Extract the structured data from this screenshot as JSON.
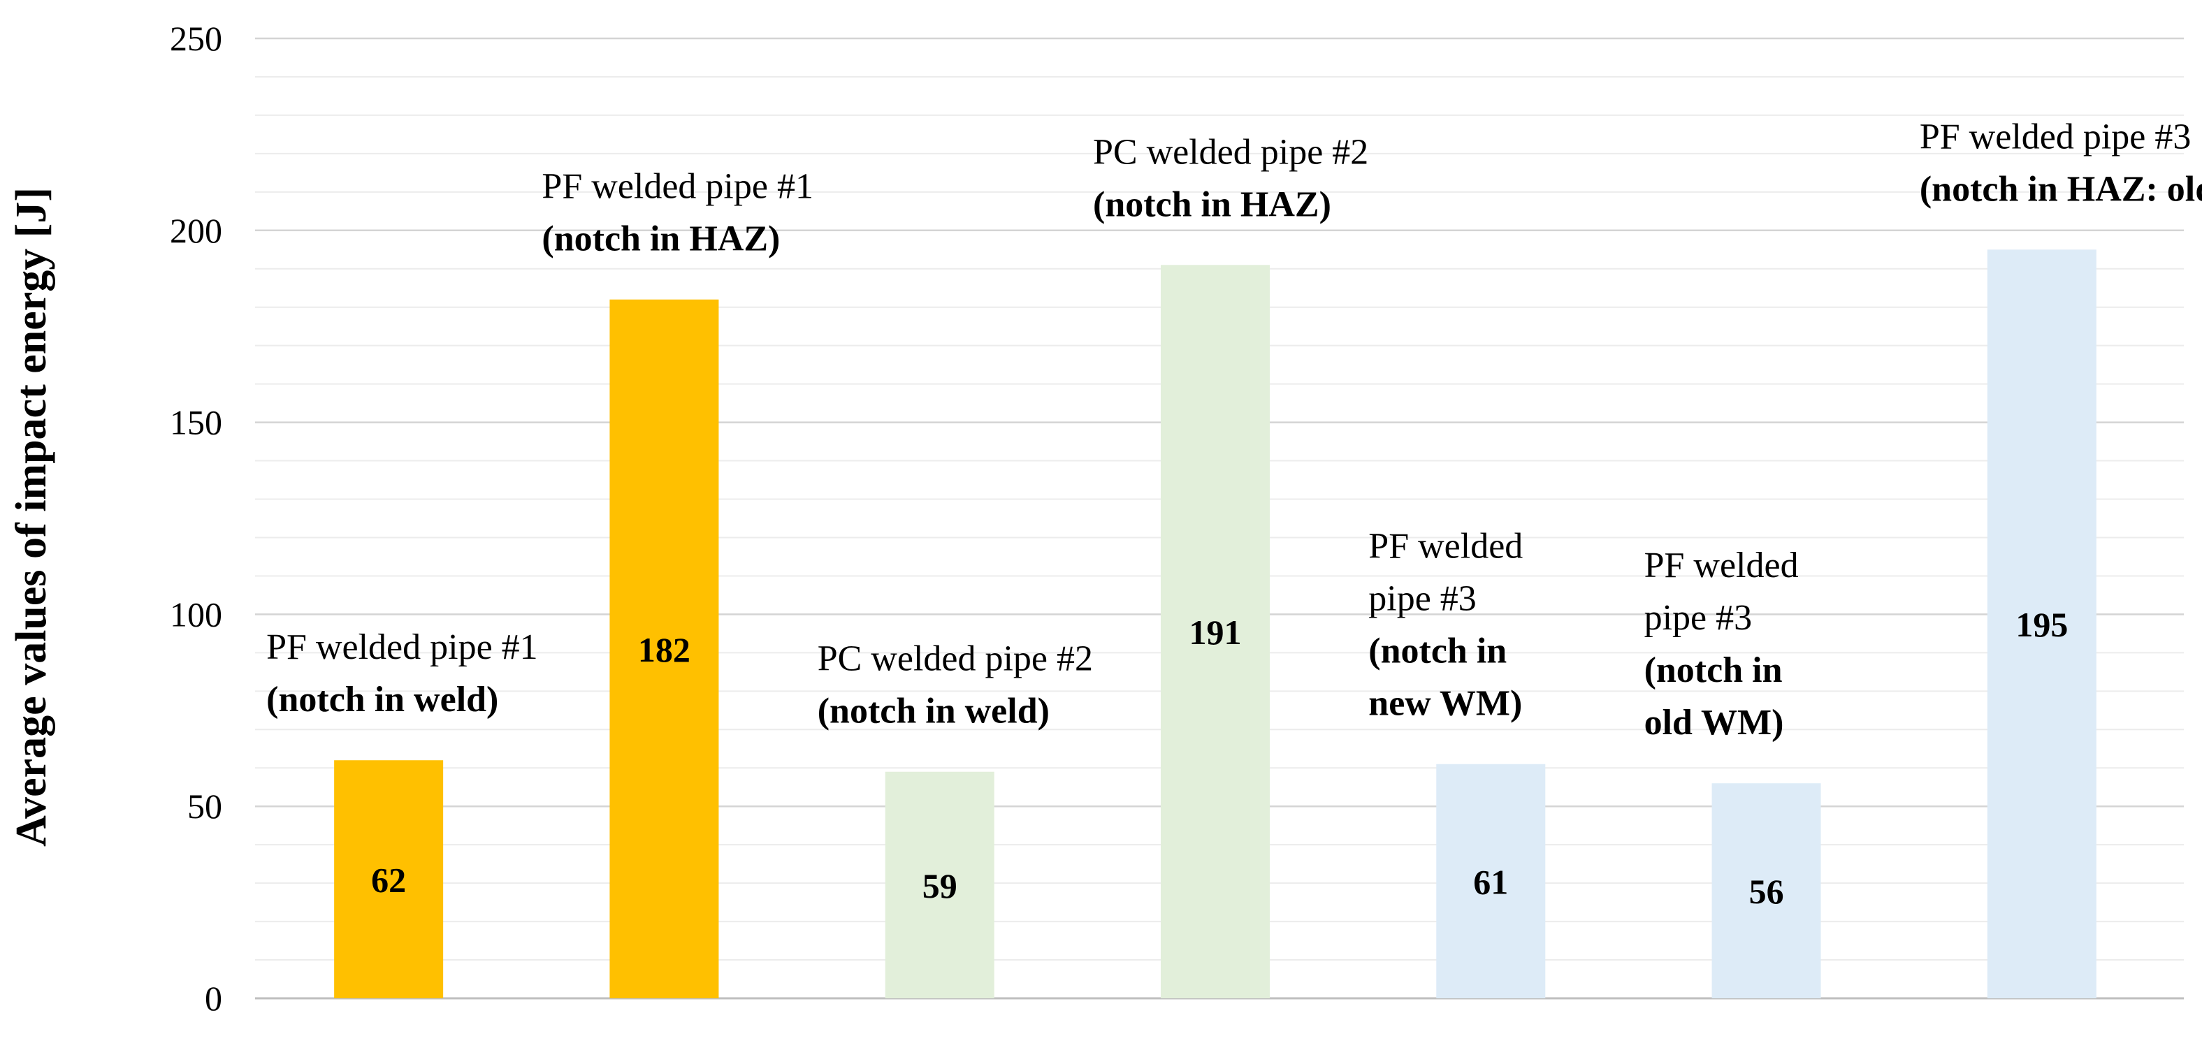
{
  "chart_data": {
    "type": "bar",
    "ylabel": "Average values of impact energy [J]",
    "ylim": [
      0,
      250
    ],
    "yticks": [
      0,
      50,
      100,
      150,
      200,
      250
    ],
    "grid": "horizontal major and minor",
    "bars": [
      {
        "value": 62,
        "label": "62",
        "color": "#FFC000",
        "annotation": [
          "PF welded pipe #1"
        ],
        "annotation_bold": [
          "(notch in weld)"
        ]
      },
      {
        "value": 182,
        "label": "182",
        "color": "#FFC000",
        "annotation": [
          "PF welded pipe #1"
        ],
        "annotation_bold": [
          "(notch in HAZ)"
        ]
      },
      {
        "value": 59,
        "label": "59",
        "color": "#E2EFDA",
        "annotation": [
          "PC welded pipe #2"
        ],
        "annotation_bold": [
          "(notch in weld)"
        ]
      },
      {
        "value": 191,
        "label": "191",
        "color": "#E2EFDA",
        "annotation": [
          "PC welded pipe #2"
        ],
        "annotation_bold": [
          "(notch in HAZ)"
        ]
      },
      {
        "value": 61,
        "label": "61",
        "color": "#DDEBF7",
        "annotation": [
          "PF welded",
          "pipe #3"
        ],
        "annotation_bold": [
          "(notch in",
          "new WM)"
        ]
      },
      {
        "value": 56,
        "label": "56",
        "color": "#DDEBF7",
        "annotation": [
          "PF welded",
          "pipe #3"
        ],
        "annotation_bold": [
          "(notch in",
          "old WM)"
        ]
      },
      {
        "value": 195,
        "label": "195",
        "color": "#DDEBF7",
        "annotation": [
          "PF welded pipe #3"
        ],
        "annotation_bold": [
          "(notch in HAZ: old WM)"
        ]
      }
    ]
  }
}
